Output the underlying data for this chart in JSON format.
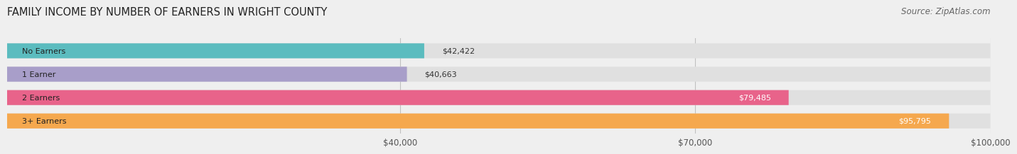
{
  "title": "FAMILY INCOME BY NUMBER OF EARNERS IN WRIGHT COUNTY",
  "source": "Source: ZipAtlas.com",
  "categories": [
    "No Earners",
    "1 Earner",
    "2 Earners",
    "3+ Earners"
  ],
  "values": [
    42422,
    40663,
    79485,
    95795
  ],
  "bar_colors": [
    "#5bbcbf",
    "#a89ec9",
    "#e8638a",
    "#f5a84e"
  ],
  "x_min": 0,
  "x_max": 100000,
  "x_ticks": [
    40000,
    70000,
    100000
  ],
  "x_tick_labels": [
    "$40,000",
    "$70,000",
    "$100,000"
  ],
  "background_color": "#efefef",
  "bar_bg_color": "#e0e0e0",
  "title_fontsize": 10.5,
  "source_fontsize": 8.5
}
